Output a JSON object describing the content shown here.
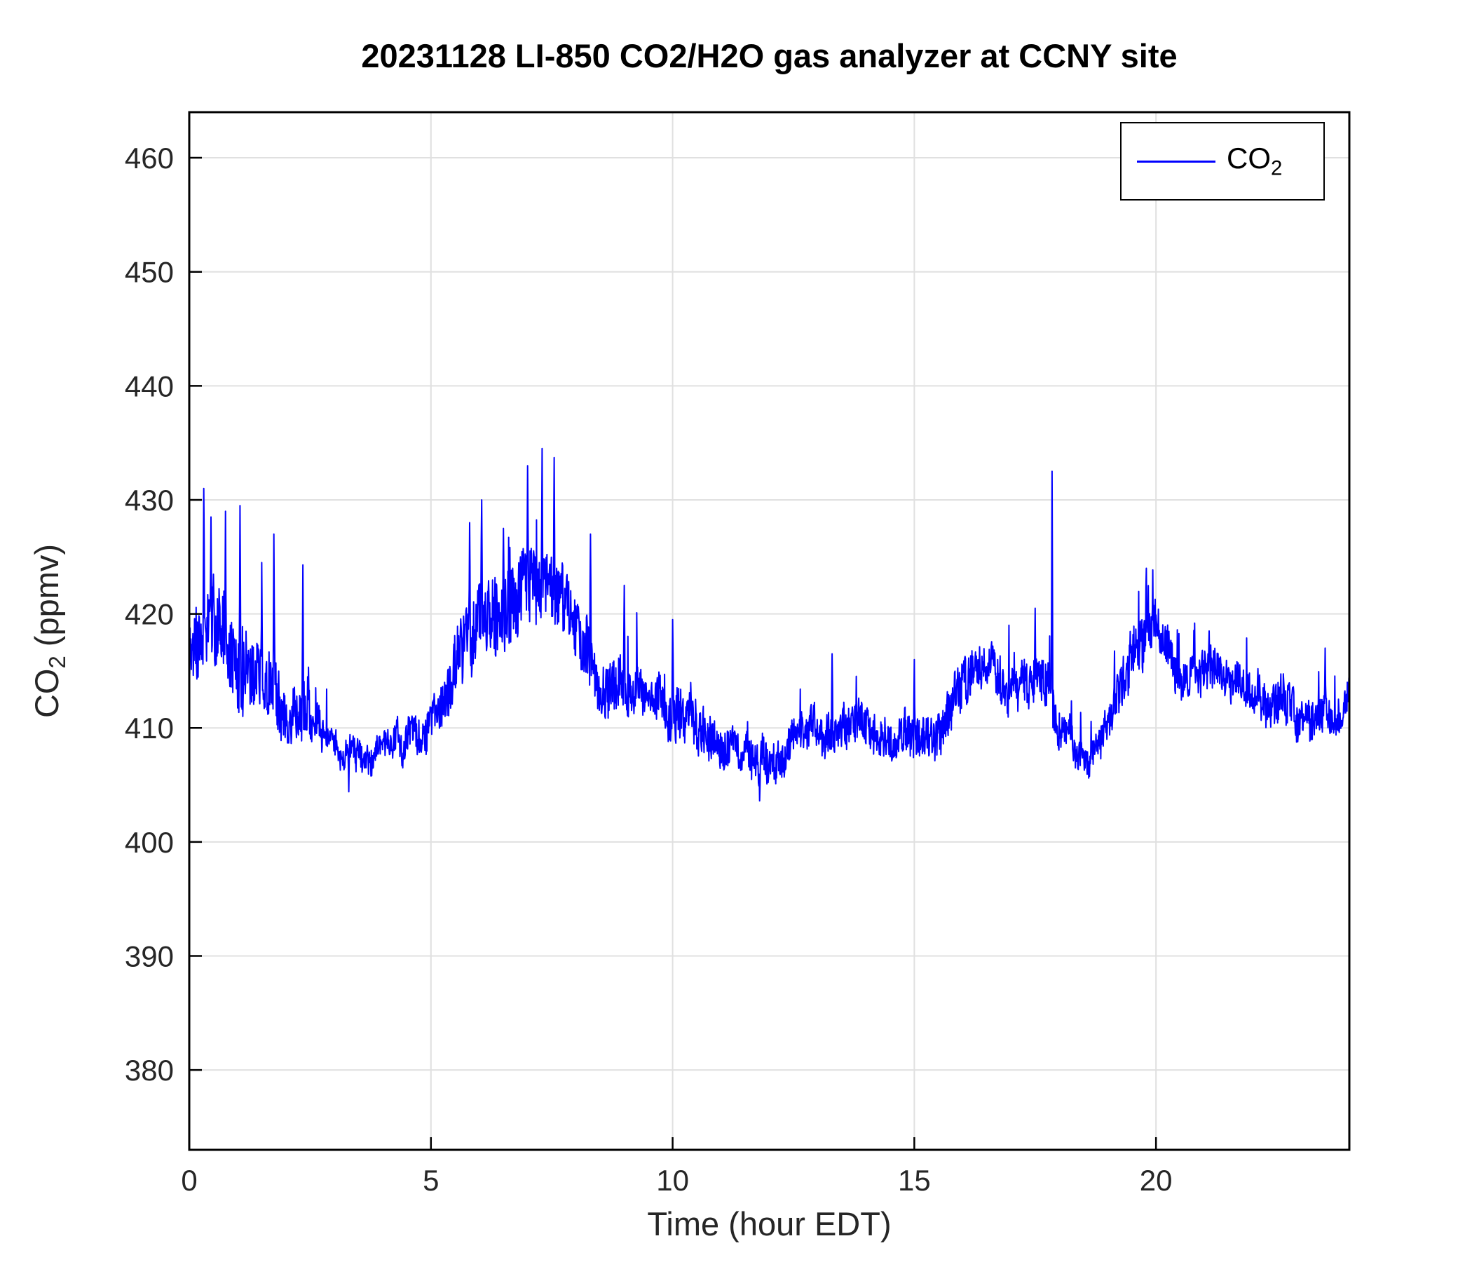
{
  "display": {
    "ylabel": {
      "prefix": "CO",
      "sub": "2",
      "suffix": " (ppmv)"
    },
    "legend_label": {
      "prefix": "CO",
      "sub": "2"
    }
  },
  "chart_data": {
    "type": "line",
    "title": "20231128 LI-850 CO2/H2O gas analyzer at CCNY site",
    "xlabel": "Time (hour EDT)",
    "ylabel": "CO2 (ppmv)",
    "xlim": [
      0,
      24
    ],
    "ylim": [
      373,
      464
    ],
    "xticks": [
      0,
      5,
      10,
      15,
      20
    ],
    "yticks": [
      380,
      390,
      400,
      410,
      420,
      430,
      440,
      450,
      460
    ],
    "grid": true,
    "grid_color": "#e0e0e0",
    "axis_color": "#000000",
    "tick_label_color": "#262626",
    "legend": {
      "position": "northeast",
      "entries": [
        {
          "label": "CO2",
          "color": "#0000ff"
        }
      ]
    },
    "series": [
      {
        "name": "CO2",
        "color": "#0000ff",
        "x_step_hours": 0.5,
        "samples_per_hour": 120,
        "seed": 20231128,
        "baseline": [
          416,
          418,
          415,
          414,
          412,
          410,
          408,
          407,
          408,
          409,
          411,
          415,
          419,
          420,
          421,
          422,
          418,
          413,
          413,
          412,
          411,
          410,
          409,
          408,
          409,
          410,
          409,
          410,
          409,
          410,
          410,
          409,
          412,
          415,
          414,
          415,
          411,
          407,
          409,
          416,
          417,
          414,
          416,
          413,
          412,
          412,
          410,
          411,
          411
        ],
        "noise_amplitude": [
          6,
          7,
          6,
          5,
          5,
          3,
          2,
          2,
          2,
          2.5,
          3,
          5,
          6,
          6,
          6,
          6,
          5,
          4,
          4,
          3,
          4,
          4,
          3,
          3,
          3.5,
          3,
          3,
          3.5,
          3,
          3,
          3.5,
          3.5,
          3.5,
          3,
          3.5,
          4,
          3,
          2,
          3,
          4,
          4,
          3,
          3,
          3,
          3,
          3.5,
          3,
          3,
          3
        ],
        "spikes": [
          {
            "t": 0.3,
            "value": 431
          },
          {
            "t": 0.45,
            "value": 428.5
          },
          {
            "t": 0.75,
            "value": 429
          },
          {
            "t": 1.05,
            "value": 429.5
          },
          {
            "t": 1.5,
            "value": 424.5
          },
          {
            "t": 1.75,
            "value": 427
          },
          {
            "t": 2.35,
            "value": 424.3
          },
          {
            "t": 3.3,
            "value": 404.4
          },
          {
            "t": 5.8,
            "value": 428
          },
          {
            "t": 6.05,
            "value": 430
          },
          {
            "t": 6.5,
            "value": 427.5
          },
          {
            "t": 7.0,
            "value": 433
          },
          {
            "t": 7.3,
            "value": 434.5
          },
          {
            "t": 7.55,
            "value": 433.7
          },
          {
            "t": 8.3,
            "value": 427
          },
          {
            "t": 9.0,
            "value": 422.5
          },
          {
            "t": 10.0,
            "value": 419.5
          },
          {
            "t": 11.8,
            "value": 403.6
          },
          {
            "t": 13.3,
            "value": 416.5
          },
          {
            "t": 15.0,
            "value": 416
          },
          {
            "t": 17.5,
            "value": 420.5
          },
          {
            "t": 17.85,
            "value": 432.5
          },
          {
            "t": 19.8,
            "value": 424
          },
          {
            "t": 21.1,
            "value": 418.5
          },
          {
            "t": 23.5,
            "value": 417
          }
        ]
      }
    ]
  }
}
